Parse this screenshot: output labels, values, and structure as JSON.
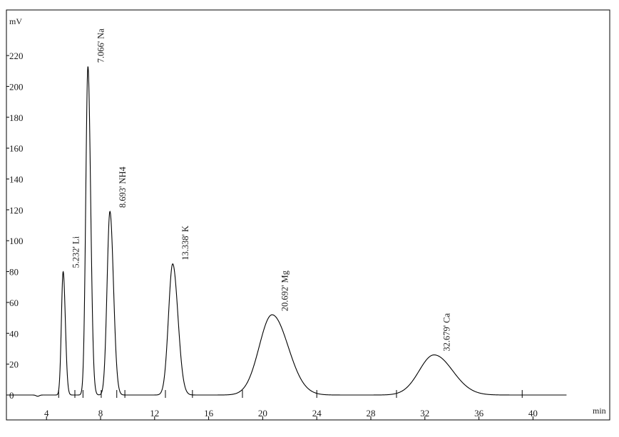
{
  "chart_data": {
    "type": "line",
    "title": "",
    "xlabel": "min",
    "ylabel": "mV",
    "xlim": [
      0,
      42.5
    ],
    "ylim": [
      -5,
      230
    ],
    "x_ticks": [
      4,
      8,
      12,
      16,
      20,
      24,
      28,
      32,
      36,
      40
    ],
    "y_ticks": [
      0,
      20,
      40,
      60,
      80,
      100,
      120,
      140,
      160,
      180,
      200,
      220
    ],
    "grid": false,
    "legend": "none",
    "line_color": "#000000",
    "peaks": [
      {
        "label": "5.232' Li",
        "time": 5.232,
        "height": 80,
        "width": 0.13
      },
      {
        "label": "7.066' Na",
        "time": 7.066,
        "height": 213,
        "width": 0.16
      },
      {
        "label": "8.693' NH4",
        "time": 8.693,
        "height": 119,
        "width": 0.21
      },
      {
        "label": "13.338' K",
        "time": 13.338,
        "height": 85,
        "width": 0.31
      },
      {
        "label": "20.692' Mg",
        "time": 20.692,
        "height": 52,
        "width": 0.95
      },
      {
        "label": "32.679' Ca",
        "time": 32.679,
        "height": 26,
        "width": 1.1
      }
    ],
    "baseline_marks": [
      4.9,
      6.1,
      6.7,
      8.05,
      9.2,
      9.8,
      12.8,
      14.8,
      18.5,
      24.0,
      29.9,
      39.2
    ]
  }
}
